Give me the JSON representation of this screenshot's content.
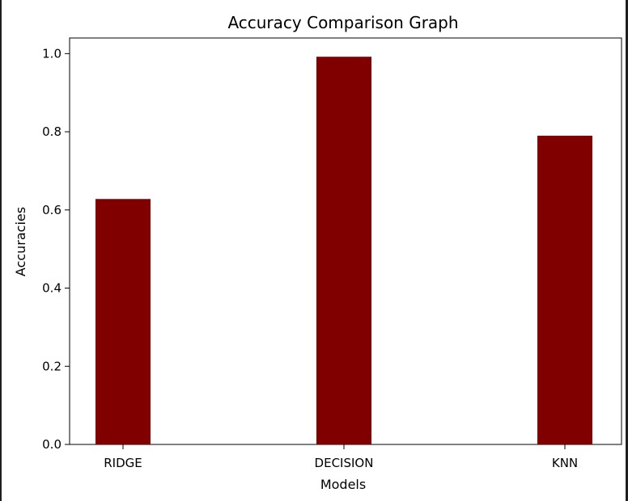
{
  "chart_data": {
    "type": "bar",
    "title": "Accuracy Comparison Graph",
    "xlabel": "Models",
    "ylabel": "Accuracies",
    "categories": [
      "RIDGE",
      "DECISION",
      "KNN"
    ],
    "values": [
      0.628,
      0.992,
      0.79
    ],
    "ylim": [
      0,
      1.04
    ],
    "yticks": [
      "0.0",
      "0.2",
      "0.4",
      "0.6",
      "0.8",
      "1.0"
    ],
    "grid": false,
    "bar_color": "#800000"
  }
}
